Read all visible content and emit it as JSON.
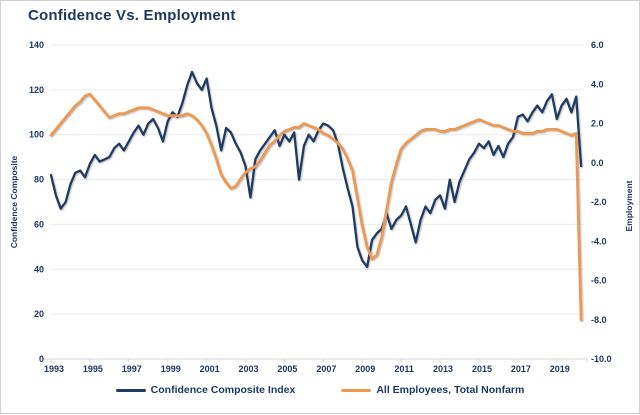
{
  "window": {
    "title": "Confidence Vs. Employment"
  },
  "colors": {
    "title_text": "#1F3864",
    "axis_text": "#1F3864",
    "gridline": "#ECECEC",
    "axis_line": "#D6D6D6",
    "background": "#FFFFFF",
    "frame_border": "#D0D0D0"
  },
  "chart_data": {
    "type": "line",
    "title": "Confidence Vs. Employment",
    "grid": "horizontal-only",
    "legend_position": "bottom",
    "x_range": [
      1993,
      2020.4
    ],
    "x_tick_labels": [
      "1993",
      "1995",
      "1997",
      "1999",
      "2001",
      "2003",
      "2005",
      "2007",
      "2009",
      "2011",
      "2013",
      "2015",
      "2017",
      "2019"
    ],
    "left_axis": {
      "title": "Confidence Composite",
      "range": [
        0,
        140
      ],
      "ticks": [
        0,
        20,
        40,
        60,
        80,
        100,
        120,
        140
      ]
    },
    "right_axis": {
      "title": "Employment",
      "range": [
        -10,
        6
      ],
      "ticks": [
        6,
        4,
        2,
        0,
        -2,
        -4,
        -6,
        -8,
        -10
      ],
      "tick_labels": [
        "6.0",
        "4.0",
        "2.0",
        "0.0",
        "-2.0",
        "-4.0",
        "-6.0",
        "-8.0",
        "-10.0"
      ]
    },
    "x": [
      1993,
      1993.25,
      1993.5,
      1993.75,
      1994,
      1994.25,
      1994.5,
      1994.75,
      1995,
      1995.25,
      1995.5,
      1995.75,
      1996,
      1996.25,
      1996.5,
      1996.75,
      1997,
      1997.25,
      1997.5,
      1997.75,
      1998,
      1998.25,
      1998.5,
      1998.75,
      1999,
      1999.25,
      1999.5,
      1999.75,
      2000,
      2000.25,
      2000.5,
      2000.75,
      2001,
      2001.25,
      2001.5,
      2001.75,
      2002,
      2002.25,
      2002.5,
      2002.75,
      2003,
      2003.25,
      2003.5,
      2003.75,
      2004,
      2004.25,
      2004.5,
      2004.75,
      2005,
      2005.25,
      2005.5,
      2005.75,
      2006,
      2006.25,
      2006.5,
      2006.75,
      2007,
      2007.25,
      2007.5,
      2007.75,
      2008,
      2008.25,
      2008.5,
      2008.75,
      2009,
      2009.25,
      2009.5,
      2009.75,
      2010,
      2010.25,
      2010.5,
      2010.75,
      2011,
      2011.25,
      2011.5,
      2011.75,
      2012,
      2012.25,
      2012.5,
      2012.75,
      2013,
      2013.25,
      2013.5,
      2013.75,
      2014,
      2014.25,
      2014.5,
      2014.75,
      2015,
      2015.25,
      2015.5,
      2015.75,
      2016,
      2016.25,
      2016.5,
      2016.75,
      2017,
      2017.25,
      2017.5,
      2017.75,
      2018,
      2018.25,
      2018.5,
      2018.75,
      2019,
      2019.25,
      2019.5,
      2019.75,
      2020,
      2020.25
    ],
    "series": [
      {
        "name": "Confidence Composite Index",
        "axis": "left",
        "color": "#1F3B63",
        "stroke_width": 2.3,
        "values": [
          82,
          73,
          67,
          70,
          78,
          83,
          84,
          81,
          87,
          91,
          88,
          89,
          90,
          94,
          96,
          93,
          97,
          101,
          104,
          100,
          105,
          107,
          103,
          97,
          106,
          110,
          108,
          114,
          122,
          128,
          123,
          120,
          125,
          112,
          104,
          93,
          103,
          101,
          96,
          92,
          86,
          72,
          89,
          93,
          96,
          99,
          102,
          95,
          100,
          97,
          101,
          80,
          95,
          100,
          97,
          102,
          105,
          104,
          102,
          96,
          85,
          76,
          68,
          50,
          44,
          41,
          53,
          56,
          58,
          65,
          58,
          62,
          64,
          68,
          60,
          52,
          62,
          68,
          65,
          71,
          73,
          67,
          80,
          70,
          79,
          84,
          89,
          92,
          96,
          94,
          97,
          91,
          95,
          90,
          96,
          99,
          108,
          109,
          106,
          110,
          113,
          110,
          115,
          118,
          107,
          113,
          116,
          110,
          117,
          86
        ]
      },
      {
        "name": "All Employees, Total Nonfarm",
        "axis": "right",
        "color": "#ED9853",
        "stroke_width": 2.8,
        "values": [
          1.4,
          1.7,
          2.0,
          2.3,
          2.6,
          2.9,
          3.1,
          3.4,
          3.5,
          3.2,
          2.9,
          2.6,
          2.3,
          2.4,
          2.5,
          2.5,
          2.6,
          2.7,
          2.8,
          2.8,
          2.8,
          2.7,
          2.6,
          2.5,
          2.4,
          2.4,
          2.4,
          2.4,
          2.5,
          2.4,
          2.2,
          1.9,
          1.5,
          0.9,
          0.2,
          -0.6,
          -1.0,
          -1.3,
          -1.2,
          -0.8,
          -0.5,
          -0.3,
          -0.2,
          0.1,
          0.5,
          0.9,
          1.1,
          1.4,
          1.6,
          1.7,
          1.8,
          1.8,
          2.0,
          1.9,
          1.8,
          1.7,
          1.5,
          1.4,
          1.2,
          1.0,
          0.7,
          0.2,
          -0.4,
          -1.8,
          -3.2,
          -4.3,
          -4.9,
          -4.7,
          -3.8,
          -2.4,
          -1.0,
          -0.1,
          0.7,
          1.0,
          1.2,
          1.4,
          1.6,
          1.7,
          1.7,
          1.7,
          1.6,
          1.6,
          1.7,
          1.7,
          1.8,
          1.9,
          2.0,
          2.1,
          2.2,
          2.1,
          2.0,
          1.9,
          1.9,
          1.8,
          1.7,
          1.6,
          1.6,
          1.5,
          1.5,
          1.5,
          1.6,
          1.6,
          1.7,
          1.7,
          1.7,
          1.6,
          1.5,
          1.4,
          1.5,
          -8.0
        ]
      }
    ]
  }
}
